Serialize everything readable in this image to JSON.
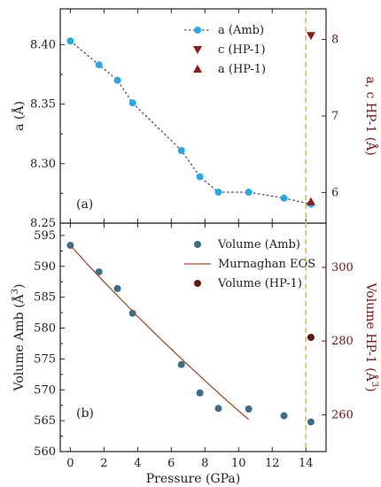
{
  "colors": {
    "amb_a": "#2aa7e6",
    "hp_marker": "#8b1a1a",
    "volume_amb": "#3b6e8a",
    "volume_hp": "#5a1a10",
    "eos_line": "#a0522d",
    "dashed_vline": "#e8b840",
    "right_axis": "#6b1616"
  },
  "chart_data": [
    {
      "panel_label": "(a)",
      "type": "line",
      "title": "",
      "xlabel": "",
      "ylabel": "a (Å)",
      "y2label": "a, c HP-1 (Å)",
      "xlim": [
        -0.6,
        15.2
      ],
      "ylim": [
        8.25,
        8.43
      ],
      "y2lim": [
        5.6,
        8.4
      ],
      "yticks": [
        8.25,
        8.3,
        8.35,
        8.4
      ],
      "ytick_labels": [
        "8.25",
        "8.30",
        "8.35",
        "8.40"
      ],
      "y2ticks": [
        6,
        7,
        8
      ],
      "y2tick_labels": [
        "6",
        "7",
        "8"
      ],
      "vline_x": 14,
      "legend_position": "top-right",
      "series": [
        {
          "name": "a (Amb)",
          "axis": "left",
          "style": "dotted-line-circles",
          "x": [
            0,
            1.7,
            2.8,
            3.7,
            6.6,
            7.7,
            8.8,
            10.6,
            12.7,
            14.3
          ],
          "y": [
            8.403,
            8.383,
            8.37,
            8.351,
            8.311,
            8.289,
            8.276,
            8.276,
            8.271,
            8.266
          ]
        },
        {
          "name": "c (HP-1)",
          "axis": "right",
          "style": "triangle-down",
          "x": [
            14.3
          ],
          "y": [
            8.05
          ]
        },
        {
          "name": "a (HP-1)",
          "axis": "right",
          "style": "triangle-up",
          "x": [
            14.3
          ],
          "y": [
            5.88
          ]
        }
      ]
    },
    {
      "panel_label": "(b)",
      "type": "scatter",
      "title": "",
      "xlabel": "Pressure (GPa)",
      "ylabel": "Volume Amb (Å3)",
      "y2label": "Volume HP-1 (Å3)",
      "xlim": [
        -0.6,
        15.2
      ],
      "ylim": [
        560,
        597
      ],
      "y2lim": [
        250,
        312
      ],
      "xticks": [
        0,
        2,
        4,
        6,
        8,
        10,
        12,
        14
      ],
      "xtick_labels": [
        "0",
        "2",
        "4",
        "6",
        "8",
        "10",
        "12",
        "14"
      ],
      "yticks": [
        560,
        565,
        570,
        575,
        580,
        585,
        590,
        595
      ],
      "ytick_labels": [
        "560",
        "565",
        "570",
        "575",
        "580",
        "585",
        "590",
        "595"
      ],
      "y2ticks": [
        260,
        280,
        300
      ],
      "y2tick_labels": [
        "260",
        "280",
        "300"
      ],
      "vline_x": 14,
      "legend_position": "top-right",
      "series": [
        {
          "name": "Volume (Amb)",
          "axis": "left",
          "style": "circles",
          "x": [
            0,
            1.7,
            2.8,
            3.7,
            6.6,
            7.7,
            8.8,
            10.6,
            12.7,
            14.3
          ],
          "y": [
            593.4,
            589.1,
            586.4,
            582.4,
            574.1,
            569.5,
            567.0,
            566.9,
            565.8,
            564.8
          ]
        },
        {
          "name": "Murnaghan EOS",
          "axis": "left",
          "style": "line",
          "x": [
            0,
            1,
            2,
            3,
            4,
            5,
            6,
            7,
            8,
            9,
            10,
            10.6
          ],
          "y": [
            593.4,
            590.4,
            587.5,
            584.7,
            581.9,
            579.2,
            576.6,
            574.0,
            571.5,
            569.0,
            566.6,
            565.2
          ]
        },
        {
          "name": "Volume (HP-1)",
          "axis": "right",
          "style": "circles",
          "x": [
            14.3
          ],
          "y": [
            281
          ]
        }
      ]
    }
  ]
}
